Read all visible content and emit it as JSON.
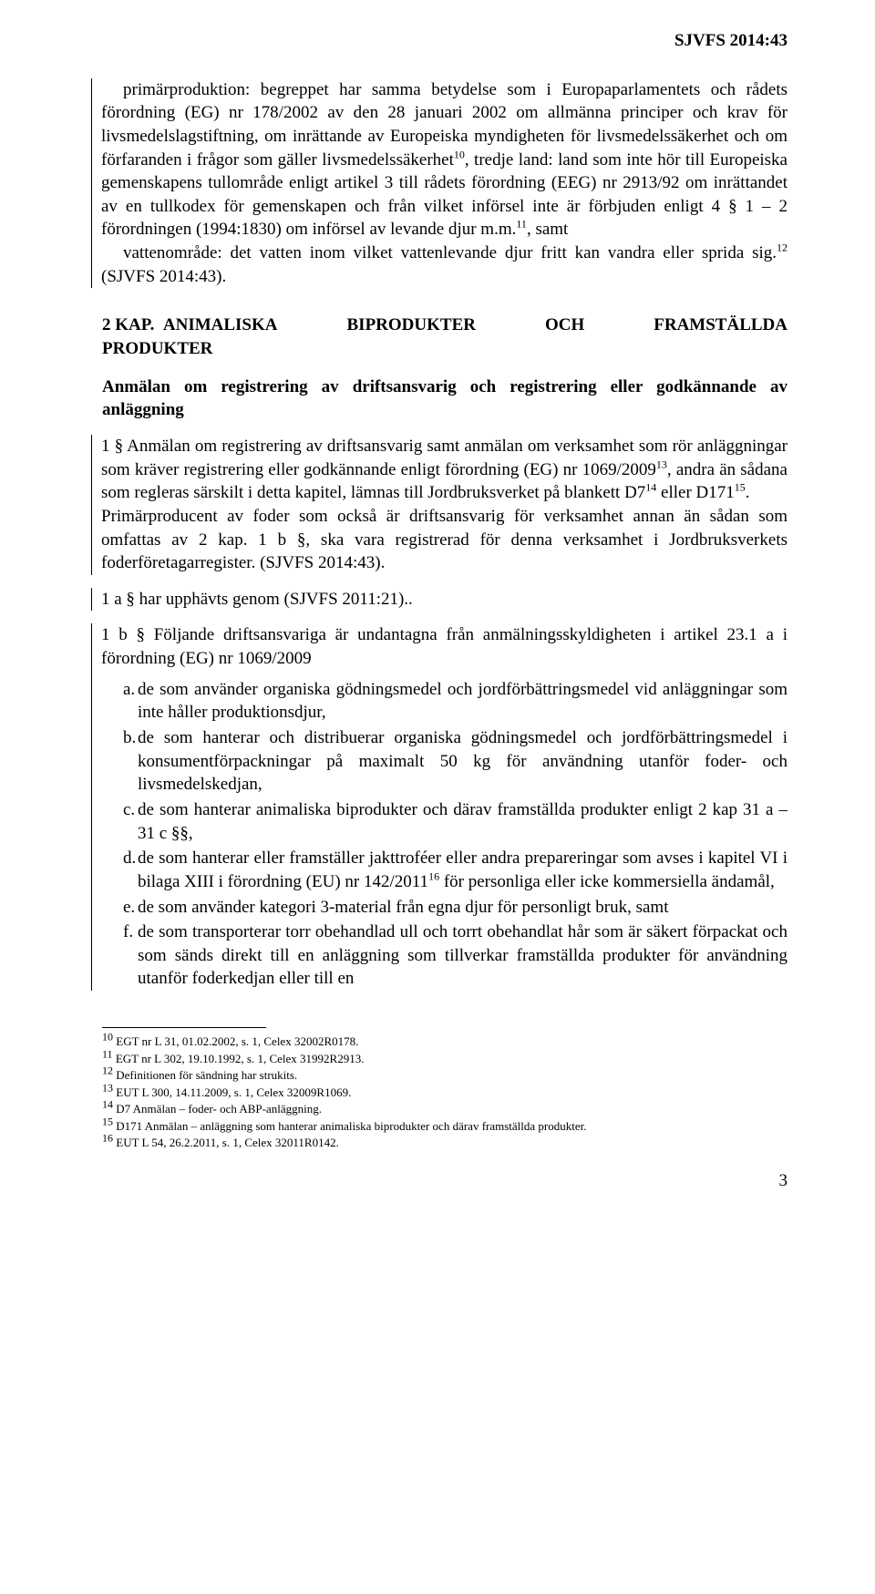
{
  "header": {
    "doc_ref": "SJVFS 2014:43"
  },
  "main_para": {
    "text": "primärproduktion: begreppet har samma betydelse som i Europaparlamentets och rådets förordning (EG) nr 178/2002 av den 28 januari 2002 om allmänna principer och krav för livsmedelslagstiftning, om inrättande av Europeiska myndigheten för livsmedelssäkerhet och om förfaranden i frågor som gäller livsmedelssäkerhet",
    "sup1": "10",
    "text2": ", tredje land: land som inte hör till Europeiska gemenskapens tullområde enligt artikel 3 till rådets förordning (EEG) nr 2913/92 om inrättandet av en tullkodex för gemenskapen och från vilket införsel inte är förbjuden enligt 4 § 1 – 2 förordningen (1994:1830) om införsel av levande djur m.m.",
    "sup2": "11",
    "text3": ", samt",
    "text4": "vattenområde: det vatten inom vilket vattenlevande djur fritt kan vandra eller sprida sig.",
    "sup3": "12",
    "text5": " (SJVFS 2014:43)."
  },
  "kap2": {
    "prefix": "2 KAP.",
    "title_left": "ANIMALISKA",
    "title_mid": "BIPRODUKTER",
    "title_och": "OCH",
    "title_right": "FRAMSTÄLLDA",
    "title_line2": "PRODUKTER"
  },
  "anmalan_heading": "Anmälan om registrering av driftsansvarig och registrering eller godkännande av anläggning",
  "para1": {
    "text1": "1 §  Anmälan om registrering av driftsansvarig samt anmälan om verksamhet som rör anläggningar som kräver registrering eller godkännande enligt förordning (EG) nr 1069/2009",
    "sup1": "13",
    "text2": ", andra än sådana som regleras särskilt i detta kapitel, lämnas till Jordbruksverket på blankett D7",
    "sup2": "14",
    "text3": " eller D171",
    "sup3": "15",
    "text4": ".",
    "text5": "Primärproducent av foder som också är driftsansvarig för verksamhet annan än sådan som omfattas av 2 kap. 1 b §, ska vara registrerad för denna verksamhet i Jordbruksverkets foderföretagarregister. (SJVFS 2014:43)."
  },
  "para1a": "1 a §  har upphävts genom (SJVFS 2011:21)..",
  "para1b": {
    "intro": "1 b §  Följande driftsansvariga är undantagna från anmälningsskyldigheten i artikel 23.1 a i förordning (EG) nr 1069/2009",
    "items": [
      {
        "marker": "a.",
        "text": "de som använder organiska gödningsmedel och jordförbättringsmedel vid anläggningar som inte håller produktionsdjur,"
      },
      {
        "marker": "b.",
        "text": "de som hanterar och distribuerar organiska gödningsmedel och jordförbättringsmedel i konsumentförpackningar på maximalt 50 kg för användning utanför foder- och livsmedelskedjan,"
      },
      {
        "marker": "c.",
        "text": "de som hanterar animaliska biprodukter och därav framställda produkter enligt 2 kap 31 a – 31 c §§,"
      },
      {
        "marker": "d.",
        "text_pre": "de som hanterar eller framställer jakttroféer eller andra prepareringar som avses i kapitel VI i bilaga XIII i förordning (EU) nr 142/2011",
        "sup": "16",
        "text_post": " för personliga eller icke kommersiella ändamål,"
      },
      {
        "marker": "e.",
        "text": "de som använder kategori 3-material från egna djur för personligt bruk, samt"
      },
      {
        "marker": "f.",
        "text": "de som transporterar torr obehandlad ull och torrt obehandlat hår som är säkert förpackat och som sänds direkt till en anläggning som tillverkar framställda produkter för användning utanför foderkedjan eller till en"
      }
    ]
  },
  "footnotes": [
    {
      "num": "10",
      "text": " EGT nr L 31, 01.02.2002, s. 1, Celex 32002R0178."
    },
    {
      "num": "11",
      "text": " EGT nr L 302, 19.10.1992, s. 1, Celex 31992R2913."
    },
    {
      "num": "12",
      "text": " Definitionen för sändning har strukits."
    },
    {
      "num": "13",
      "text": " EUT L 300, 14.11.2009, s. 1, Celex 32009R1069."
    },
    {
      "num": "14",
      "text": " D7 Anmälan – foder- och ABP-anläggning."
    },
    {
      "num": "15",
      "text": " D171 Anmälan – anläggning som hanterar animaliska biprodukter och därav framställda produkter."
    },
    {
      "num": "16",
      "text": " EUT L 54, 26.2.2011, s. 1,  Celex 32011R0142."
    }
  ],
  "page_number": "3"
}
